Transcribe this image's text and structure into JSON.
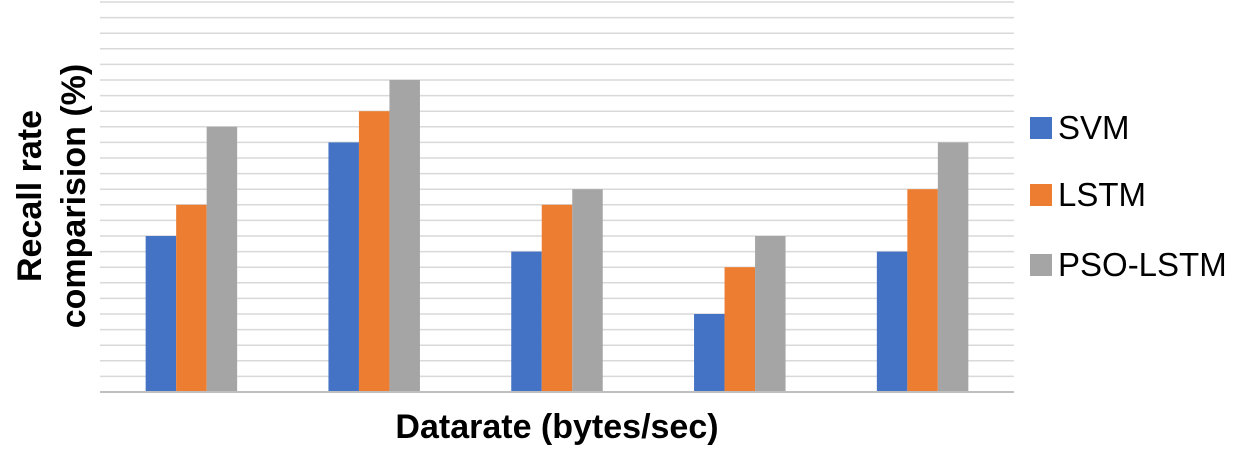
{
  "chart_data": {
    "type": "bar",
    "title": "",
    "xlabel": "Datarate (bytes/sec)",
    "ylabel_lines": [
      "Recall rate",
      "comparision  (%)"
    ],
    "categories": [
      "",
      "",
      "",
      "",
      ""
    ],
    "ylim": [
      0,
      25
    ],
    "grid": true,
    "legend_position": "right",
    "series": [
      {
        "name": "SVM",
        "color": "#4472C4",
        "values": [
          10,
          16,
          9,
          5,
          9
        ]
      },
      {
        "name": "LSTM",
        "color": "#ED7D31",
        "values": [
          12,
          18,
          12,
          8,
          13
        ]
      },
      {
        "name": "PSO-LSTM",
        "color": "#A5A5A5",
        "values": [
          17,
          20,
          13,
          10,
          16
        ]
      }
    ]
  }
}
